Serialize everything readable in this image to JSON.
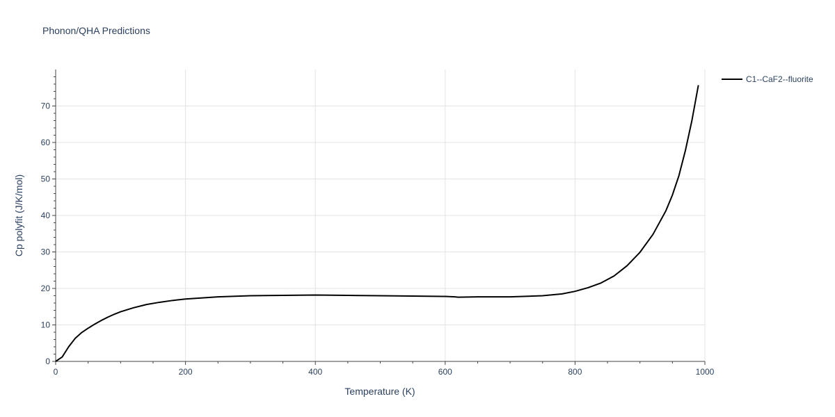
{
  "chart_data": {
    "type": "line",
    "title": "Phonon/QHA Predictions",
    "xlabel": "Temperature (K)",
    "ylabel": "Cp polyfit (J/K/mol)",
    "xlim": [
      0,
      1000
    ],
    "ylim": [
      0,
      80
    ],
    "xticks": [
      0,
      200,
      400,
      600,
      800,
      1000
    ],
    "yticks": [
      0,
      10,
      20,
      30,
      40,
      50,
      60,
      70
    ],
    "grid": true,
    "legend_position": "top-right",
    "series": [
      {
        "name": "C1--CaF2--fluorite",
        "color": "#000000",
        "x": [
          0,
          10,
          20,
          30,
          40,
          50,
          60,
          70,
          80,
          90,
          100,
          120,
          140,
          160,
          180,
          200,
          250,
          300,
          350,
          400,
          450,
          500,
          550,
          600,
          615,
          620,
          650,
          700,
          750,
          780,
          800,
          820,
          840,
          860,
          880,
          900,
          920,
          940,
          950,
          960,
          970,
          980,
          990
        ],
        "y": [
          0,
          1.2,
          4.0,
          6.3,
          7.9,
          9.1,
          10.2,
          11.2,
          12.1,
          12.9,
          13.6,
          14.7,
          15.6,
          16.2,
          16.7,
          17.1,
          17.7,
          18.0,
          18.1,
          18.2,
          18.1,
          18.0,
          17.9,
          17.8,
          17.7,
          17.6,
          17.7,
          17.7,
          18.0,
          18.5,
          19.2,
          20.2,
          21.5,
          23.4,
          26.2,
          29.9,
          34.8,
          41.3,
          45.6,
          50.9,
          57.8,
          66.0,
          75.7
        ]
      }
    ]
  }
}
